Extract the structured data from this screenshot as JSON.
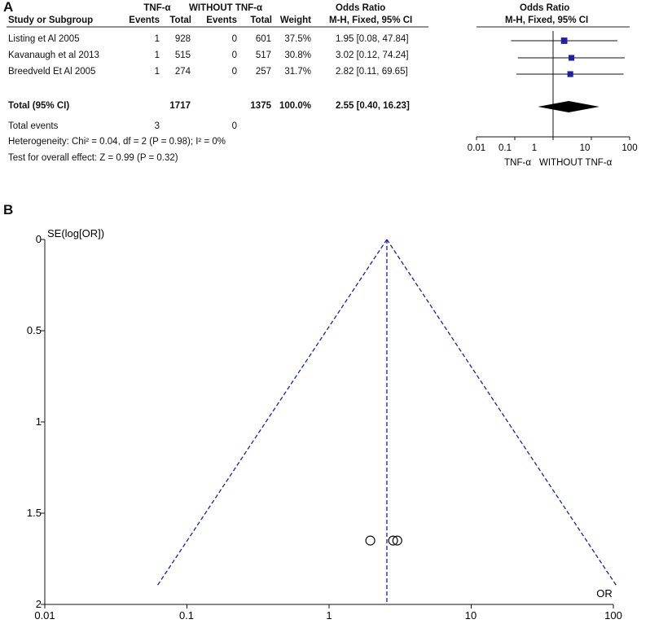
{
  "panels": {
    "a_label": "A",
    "b_label": "B"
  },
  "forest": {
    "group_headers": {
      "treatment": "TNF-α",
      "control": "WITHOUT TNF-α",
      "or_col": "Odds Ratio",
      "or_plot": "Odds Ratio"
    },
    "col_headers": {
      "study": "Study or Subgroup",
      "t_events": "Events",
      "t_total": "Total",
      "c_events": "Events",
      "c_total": "Total",
      "weight": "Weight",
      "method": "M-H, Fixed, 95% CI",
      "method_plot": "M-H, Fixed, 95% CI"
    },
    "studies": [
      {
        "name": "Listing  et Al 2005",
        "t_events": "1",
        "t_total": "928",
        "c_events": "0",
        "c_total": "601",
        "weight": "37.5%",
        "ci_text": "1.95 [0.08, 47.84]"
      },
      {
        "name": "Kavanaugh et al  2013",
        "t_events": "1",
        "t_total": "515",
        "c_events": "0",
        "c_total": "517",
        "weight": "30.8%",
        "ci_text": "3.02 [0.12, 74.24]"
      },
      {
        "name": "Breedveld Et Al 2005",
        "t_events": "1",
        "t_total": "274",
        "c_events": "0",
        "c_total": "257",
        "weight": "31.7%",
        "ci_text": "2.82 [0.11, 69.65]"
      }
    ],
    "total": {
      "label": "Total (95% CI)",
      "t_total": "1717",
      "c_total": "1375",
      "weight": "100.0%",
      "ci_text": "2.55 [0.40, 16.23]"
    },
    "total_events": {
      "label": "Total events",
      "t_events": "3",
      "c_events": "0"
    },
    "heterogeneity": "Heterogeneity: Chi² = 0.04, df = 2 (P = 0.98); I² = 0%",
    "overall_effect": "Test for overall effect: Z = 0.99 (P = 0.32)",
    "axis_ticks": [
      "0.01",
      "0.1",
      "1",
      "10",
      "100"
    ],
    "axis_left_label": "TNF-α",
    "axis_right_label": "WITHOUT TNF-α"
  },
  "funnel": {
    "y_label": "SE(log[OR])",
    "x_label": "OR",
    "x_ticks": [
      "0.01",
      "0.1",
      "1",
      "10",
      "100"
    ],
    "y_ticks": [
      "0",
      "0.5",
      "1",
      "1.5",
      "2"
    ]
  },
  "chart_data": [
    {
      "type": "forest",
      "xscale": "log",
      "xlim": [
        0.01,
        100
      ],
      "x_ticks": [
        0.01,
        0.1,
        1,
        10,
        100
      ],
      "studies": [
        {
          "name": "Listing  et Al 2005",
          "or": 1.95,
          "ci": [
            0.08,
            47.84
          ],
          "weight": 37.5
        },
        {
          "name": "Kavanaugh et al  2013",
          "or": 3.02,
          "ci": [
            0.12,
            74.24
          ],
          "weight": 30.8
        },
        {
          "name": "Breedveld Et Al 2005",
          "or": 2.82,
          "ci": [
            0.11,
            69.65
          ],
          "weight": 31.7
        }
      ],
      "pooled": {
        "or": 2.55,
        "ci": [
          0.4,
          16.23
        ]
      },
      "marker_color": "#1f1fa8"
    },
    {
      "type": "scatter",
      "xscale": "log",
      "xlim": [
        0.01,
        100
      ],
      "ylim": [
        0,
        2
      ],
      "y_inverted": true,
      "xlabel": "OR",
      "ylabel": "SE(log[OR])",
      "points": [
        {
          "x": 1.95,
          "y": 1.65
        },
        {
          "x": 2.82,
          "y": 1.65
        },
        {
          "x": 3.02,
          "y": 1.65
        }
      ],
      "pooled_or": 2.55,
      "line_color": "#1f1fa8"
    }
  ]
}
